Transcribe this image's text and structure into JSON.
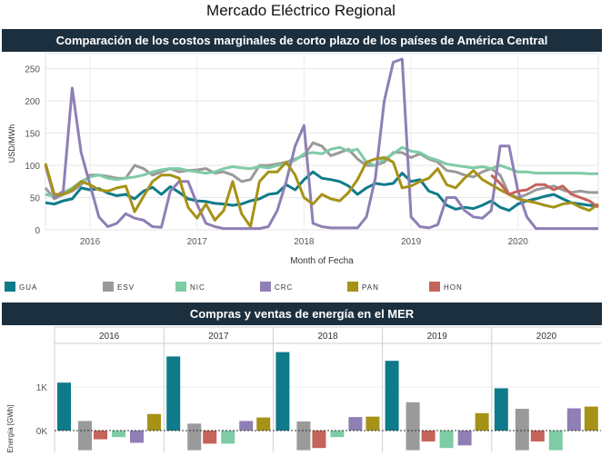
{
  "page": {
    "title": "Mercado Eléctrico Regional",
    "section1_title": "Comparación de los costos marginales de corto plazo de los países de América Central",
    "section2_title": "Compras y ventas de energía en el MER"
  },
  "legend": [
    {
      "label": "GUA",
      "color": "#0f7b8a"
    },
    {
      "label": "ESV",
      "color": "#9a9a9a"
    },
    {
      "label": "NIC",
      "color": "#7ecba6"
    },
    {
      "label": "CRC",
      "color": "#8f7fb5"
    },
    {
      "label": "PAN",
      "color": "#a69217"
    },
    {
      "label": "HON",
      "color": "#c4645a"
    }
  ],
  "chart_data": [
    {
      "type": "line",
      "title": "Comparación de los costos marginales de corto plazo de los países de América Central",
      "xlabel": "Month of Fecha",
      "ylabel": "USD/MWh",
      "x_ticks": [
        "2016",
        "2017",
        "2018",
        "2019",
        "2020"
      ],
      "y_ticks": [
        0,
        50,
        100,
        150,
        200,
        250
      ],
      "ylim": [
        0,
        265
      ],
      "x_start": "2015-08",
      "grid": true,
      "series": [
        {
          "name": "GUA",
          "color": "#0f7b8a",
          "values": [
            42,
            40,
            45,
            48,
            65,
            62,
            64,
            57,
            53,
            55,
            48,
            60,
            66,
            55,
            67,
            58,
            48,
            45,
            44,
            41,
            40,
            38,
            40,
            45,
            48,
            55,
            57,
            70,
            62,
            78,
            90,
            80,
            78,
            75,
            68,
            55,
            65,
            72,
            70,
            72,
            88,
            75,
            78,
            60,
            55,
            38,
            32,
            35,
            33,
            38,
            45,
            35,
            30,
            40,
            45,
            48,
            52,
            55,
            48,
            42,
            40,
            38,
            37
          ]
        },
        {
          "name": "ESV",
          "color": "#9a9a9a",
          "values": [
            65,
            48,
            55,
            60,
            70,
            85,
            85,
            83,
            80,
            80,
            100,
            95,
            85,
            90,
            95,
            90,
            92,
            93,
            95,
            88,
            90,
            85,
            75,
            78,
            100,
            100,
            102,
            105,
            110,
            115,
            135,
            130,
            115,
            120,
            125,
            110,
            100,
            100,
            105,
            120,
            120,
            112,
            118,
            110,
            105,
            92,
            90,
            85,
            82,
            90,
            95,
            85,
            55,
            50,
            55,
            62,
            65,
            68,
            62,
            58,
            60,
            58,
            58
          ]
        },
        {
          "name": "NIC",
          "color": "#7ecba6",
          "values": [
            55,
            52,
            58,
            65,
            75,
            82,
            85,
            80,
            78,
            80,
            82,
            85,
            90,
            93,
            95,
            95,
            92,
            90,
            88,
            90,
            95,
            98,
            96,
            95,
            98,
            96,
            100,
            102,
            108,
            118,
            120,
            118,
            125,
            128,
            122,
            125,
            105,
            100,
            110,
            118,
            128,
            122,
            120,
            112,
            108,
            102,
            100,
            98,
            96,
            98,
            95,
            100,
            95,
            90,
            90,
            88,
            88,
            88,
            88,
            88,
            88,
            87,
            87
          ]
        },
        {
          "name": "CRC",
          "color": "#8f7fb5",
          "values": [
            100,
            50,
            60,
            220,
            120,
            70,
            20,
            5,
            10,
            25,
            18,
            15,
            5,
            4,
            60,
            75,
            75,
            40,
            10,
            5,
            2,
            2,
            2,
            2,
            2,
            5,
            30,
            75,
            130,
            162,
            10,
            5,
            3,
            3,
            3,
            3,
            20,
            80,
            200,
            260,
            265,
            20,
            5,
            3,
            8,
            50,
            50,
            30,
            20,
            18,
            30,
            130,
            130,
            60,
            20,
            2,
            2,
            2,
            2,
            2,
            2,
            2,
            2
          ]
        },
        {
          "name": "PAN",
          "color": "#a69217",
          "values": [
            103,
            55,
            55,
            62,
            75,
            70,
            62,
            60,
            65,
            68,
            28,
            52,
            75,
            85,
            85,
            80,
            35,
            18,
            40,
            15,
            30,
            75,
            25,
            5,
            75,
            90,
            90,
            105,
            85,
            50,
            40,
            55,
            48,
            45,
            58,
            78,
            105,
            110,
            112,
            105,
            65,
            68,
            75,
            80,
            95,
            70,
            65,
            80,
            92,
            78,
            70,
            62,
            55,
            48,
            45,
            42,
            38,
            35,
            40,
            42,
            35,
            30,
            40
          ]
        },
        {
          "name": "HON",
          "color": "#c4645a",
          "values": [
            null,
            null,
            null,
            null,
            null,
            null,
            null,
            null,
            null,
            null,
            null,
            null,
            null,
            null,
            null,
            null,
            null,
            null,
            null,
            null,
            null,
            null,
            null,
            null,
            null,
            null,
            null,
            null,
            null,
            null,
            null,
            null,
            null,
            null,
            null,
            null,
            null,
            null,
            null,
            null,
            null,
            null,
            null,
            null,
            null,
            null,
            null,
            null,
            null,
            null,
            85,
            72,
            55,
            60,
            62,
            70,
            70,
            62,
            68,
            55,
            50,
            45,
            35
          ]
        }
      ]
    },
    {
      "type": "bar",
      "title": "Compras y ventas de energía en el MER",
      "ylabel": "Energía [GWh]",
      "y_ticks": [
        "0K",
        "1K"
      ],
      "ylim": [
        -500,
        1900
      ],
      "categories": [
        "2016",
        "2017",
        "2018",
        "2019",
        "2020"
      ],
      "series": [
        {
          "name": "GUA",
          "color": "#0f7b8a",
          "values": [
            1100,
            1700,
            1800,
            1600,
            970
          ]
        },
        {
          "name": "ESV",
          "color": "#9a9a9a",
          "values": [
            -450,
            -450,
            -450,
            -450,
            -450
          ]
        },
        {
          "name": "NIC",
          "color": "#7ecba6",
          "values": [
            -150,
            -300,
            -150,
            -400,
            -450
          ]
        },
        {
          "name": "CRC",
          "color": "#8f7fb5",
          "values": [
            -280,
            220,
            310,
            -340,
            510
          ]
        },
        {
          "name": "PAN",
          "color": "#a69217",
          "values": [
            380,
            300,
            320,
            400,
            550
          ]
        },
        {
          "name": "HON",
          "color": "#c4645a",
          "values": [
            -200,
            -300,
            -400,
            -250,
            -250
          ]
        }
      ],
      "esv_positive": [
        220,
        160,
        210,
        650,
        500
      ]
    }
  ]
}
